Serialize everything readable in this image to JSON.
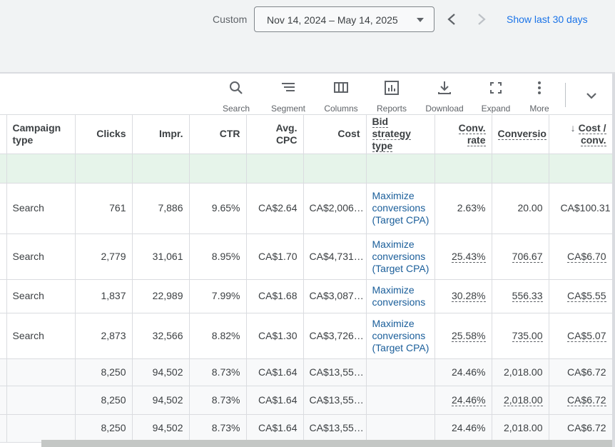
{
  "date_bar": {
    "custom_label": "Custom",
    "range": "Nov 14, 2024 – May 14, 2025",
    "show_last": "Show last 30 days"
  },
  "toolbar": {
    "tools": [
      {
        "label": "Search",
        "icon": "search-icon"
      },
      {
        "label": "Segment",
        "icon": "segment-icon"
      },
      {
        "label": "Columns",
        "icon": "columns-icon"
      },
      {
        "label": "Reports",
        "icon": "reports-icon"
      },
      {
        "label": "Download",
        "icon": "download-icon"
      },
      {
        "label": "Expand",
        "icon": "expand-icon"
      },
      {
        "label": "More",
        "icon": "more-vert-icon"
      }
    ]
  },
  "table": {
    "headers": {
      "campaign_type": "Campaign type",
      "clicks": "Clicks",
      "impr": "Impr.",
      "ctr": "CTR",
      "avg_cpc": "Avg. CPC",
      "cost": "Cost",
      "bid_strategy": "Bid strategy type",
      "conv_rate": "Conv. rate",
      "conversions": "Conversio",
      "cost_conv": "Cost / conv."
    },
    "rows": [
      {
        "type": "Search",
        "clicks": "761",
        "impr": "7,886",
        "ctr": "9.65%",
        "cpc": "CA$2.64",
        "cost": "CA$2,006…",
        "bid": "Maximize conversions (Target CPA)",
        "conv_rate": "2.63%",
        "conv": "20.00",
        "cost_conv": "CA$100.31"
      },
      {
        "type": "Search",
        "clicks": "2,779",
        "impr": "31,061",
        "ctr": "8.95%",
        "cpc": "CA$1.70",
        "cost": "CA$4,731…",
        "bid": "Maximize conversions (Target CPA)",
        "conv_rate": "25.43%",
        "conv": "706.67",
        "cost_conv": "CA$6.70"
      },
      {
        "type": "Search",
        "clicks": "1,837",
        "impr": "22,989",
        "ctr": "7.99%",
        "cpc": "CA$1.68",
        "cost": "CA$3,087…",
        "bid": "Maximize conversions",
        "conv_rate": "30.28%",
        "conv": "556.33",
        "cost_conv": "CA$5.55"
      },
      {
        "type": "Search",
        "clicks": "2,873",
        "impr": "32,566",
        "ctr": "8.82%",
        "cpc": "CA$1.30",
        "cost": "CA$3,726…",
        "bid": "Maximize conversions (Target CPA)",
        "conv_rate": "25.58%",
        "conv": "735.00",
        "cost_conv": "CA$5.07"
      }
    ],
    "totals": [
      {
        "clicks": "8,250",
        "impr": "94,502",
        "ctr": "8.73%",
        "cpc": "CA$1.64",
        "cost": "CA$13,55…",
        "conv_rate": "24.46%",
        "conv": "2,018.00",
        "cost_conv": "CA$6.72"
      },
      {
        "clicks": "8,250",
        "impr": "94,502",
        "ctr": "8.73%",
        "cpc": "CA$1.64",
        "cost": "CA$13,55…",
        "conv_rate": "24.46%",
        "conv": "2,018.00",
        "cost_conv": "CA$6.72"
      },
      {
        "clicks": "8,250",
        "impr": "94,502",
        "ctr": "8.73%",
        "cpc": "CA$1.64",
        "cost": "CA$13,55…",
        "conv_rate": "24.46%",
        "conv": "2,018.00",
        "cost_conv": "CA$6.72"
      }
    ]
  }
}
